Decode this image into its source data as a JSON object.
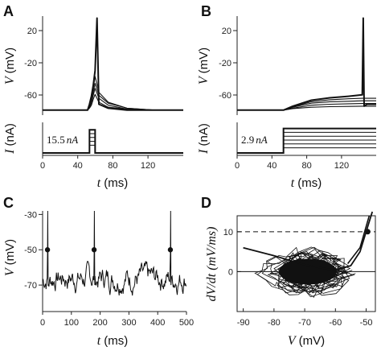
{
  "panels": {
    "A": {
      "letter": "A",
      "volt": {
        "ylabel_var": "V",
        "ylabel_unit": "(mV)",
        "yticks": [
          "20",
          "-20",
          "-60"
        ]
      },
      "curr": {
        "ylabel_var": "I",
        "ylabel_unit": "(nA)",
        "annotation_value": "15.5",
        "annotation_unit": "nA"
      },
      "xticks": [
        "0",
        "40",
        "80",
        "120"
      ],
      "xlabel_var": "t",
      "xlabel_unit": "(ms)"
    },
    "B": {
      "letter": "B",
      "volt": {
        "ylabel_var": "V",
        "ylabel_unit": "(mV)",
        "yticks": [
          "20",
          "-20",
          "-60"
        ]
      },
      "curr": {
        "ylabel_var": "I",
        "ylabel_unit": "(nA)",
        "annotation_value": "2.9",
        "annotation_unit": "nA"
      },
      "xticks": [
        "0",
        "40",
        "80",
        "120"
      ],
      "xlabel_var": "t",
      "xlabel_unit": "(ms)"
    },
    "C": {
      "letter": "C",
      "ylabel_var": "V",
      "ylabel_unit": "(mV)",
      "yticks": [
        "-30",
        "-50",
        "-70"
      ],
      "xticks": [
        "0",
        "100",
        "200",
        "300",
        "400",
        "500"
      ],
      "xlabel_var": "t",
      "xlabel_unit": "(ms)"
    },
    "D": {
      "letter": "D",
      "ylabel": "dV/dt (mV/ms)",
      "yticks": [
        "10",
        "0"
      ],
      "xticks": [
        "-90",
        "-80",
        "-70",
        "-60",
        "-50"
      ],
      "xlabel_var": "V",
      "xlabel_unit": "(mV)"
    }
  },
  "chart_data": [
    {
      "panel": "A",
      "type": "line",
      "subplot": "voltage",
      "xlim": [
        0,
        150
      ],
      "ylim": [
        -75,
        25
      ],
      "x": [
        0,
        30,
        48,
        50,
        52,
        54,
        56,
        58,
        60,
        70,
        90,
        120,
        150
      ],
      "series": [
        {
          "values": [
            -70,
            -70,
            -70,
            -68,
            -65,
            -59,
            -54,
            -58,
            -62,
            -67,
            -69,
            -70,
            -70
          ]
        },
        {
          "values": [
            -70,
            -70,
            -70,
            -67,
            -63,
            -55,
            -48,
            -53,
            -58,
            -65,
            -69,
            -70,
            -70
          ]
        },
        {
          "values": [
            -70,
            -70,
            -70,
            -66,
            -60,
            -52,
            -43,
            -49,
            -55,
            -63,
            -68,
            -70,
            -70
          ]
        },
        {
          "values": [
            -70,
            -70,
            -70,
            -65,
            -58,
            -48,
            -36,
            -44,
            -52,
            -62,
            -68,
            -70,
            -70
          ]
        },
        {
          "values": [
            -70,
            -70,
            -70,
            -64,
            -56,
            -45,
            -30,
            23,
            -64,
            -68,
            -70,
            -70,
            -70
          ]
        }
      ]
    },
    {
      "panel": "A",
      "type": "line",
      "subplot": "current",
      "xlim": [
        0,
        150
      ],
      "step_on": 50,
      "step_off": 56,
      "series": [
        {
          "values": [
            0.3,
            0.45,
            0.6,
            0.75,
            0.9
          ]
        }
      ]
    },
    {
      "panel": "B",
      "type": "line",
      "subplot": "voltage",
      "xlim": [
        0,
        150
      ],
      "ylim": [
        -75,
        25
      ],
      "x": [
        0,
        40,
        50,
        60,
        80,
        100,
        120,
        135,
        136,
        137,
        140,
        150
      ],
      "series": [
        {
          "values": [
            -70,
            -70,
            -70,
            -68.5,
            -67,
            -66.5,
            -66.2,
            -66,
            -66,
            -66,
            -66,
            -66
          ]
        },
        {
          "values": [
            -70,
            -70,
            -70,
            -68,
            -65,
            -64,
            -63.5,
            -63.3,
            -63.3,
            -63.3,
            -63.3,
            -63.3
          ]
        },
        {
          "values": [
            -70,
            -70,
            -70,
            -67,
            -63,
            -61.5,
            -61,
            -60.5,
            -60.5,
            -60.5,
            -60.5,
            -60.5
          ]
        },
        {
          "values": [
            -70,
            -70,
            -70,
            -66.5,
            -61.5,
            -59.5,
            -58.5,
            -58,
            -58,
            -58,
            -58,
            -58
          ]
        },
        {
          "values": [
            -70,
            -70,
            -70,
            -66,
            -60,
            -57.5,
            -56,
            -54.5,
            23,
            -66,
            -64,
            -64
          ]
        }
      ]
    },
    {
      "panel": "B",
      "type": "line",
      "subplot": "current",
      "xlim": [
        0,
        150
      ],
      "step_on": 50,
      "series": [
        {
          "values": [
            0.2,
            0.35,
            0.5,
            0.65,
            0.8,
            0.95
          ]
        }
      ]
    },
    {
      "panel": "C",
      "type": "line",
      "xlim": [
        0,
        500
      ],
      "ylim": [
        -85,
        -28
      ],
      "spike_times": [
        18,
        180,
        445
      ],
      "threshold_marker": -50,
      "seed": 7
    },
    {
      "panel": "D",
      "type": "scatter",
      "xlim": [
        -92,
        -47
      ],
      "ylim": [
        -10,
        14
      ],
      "dashed_level": 10,
      "zero_line": 0,
      "marker": {
        "x": -49.5,
        "y": 10
      },
      "fit_line": {
        "x": [
          -90,
          -80,
          -70,
          -60,
          -55,
          -52,
          -50,
          -48
        ],
        "y": [
          6,
          4,
          1.7,
          0.3,
          1.5,
          5,
          10,
          15
        ]
      }
    }
  ]
}
